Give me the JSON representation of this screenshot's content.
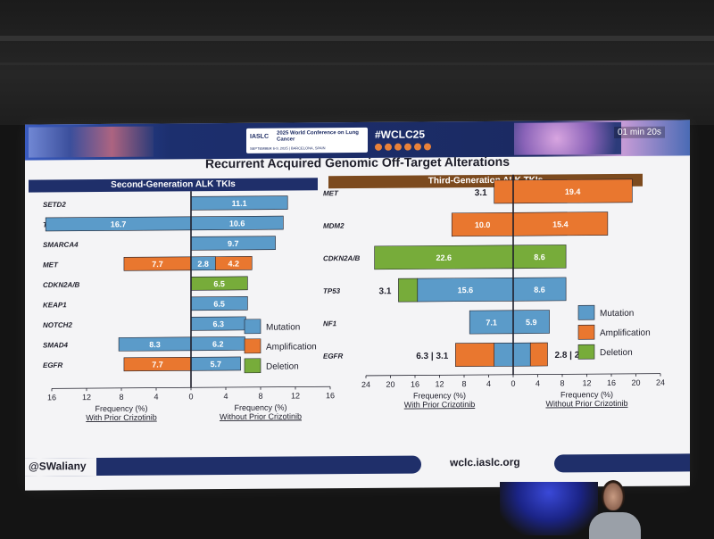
{
  "banner": {
    "conference_logo": "IASLC",
    "conference_title": "2025 World Conference on Lung Cancer",
    "conference_dates": "SEPTEMBER 6-9, 2025 | BARCELONA, SPAIN",
    "hashtag": "#WCLC25",
    "timer": "01 min 20s"
  },
  "slide": {
    "title": "Recurrent Acquired Genomic Off-Target Alterations",
    "handle": "@SWaliany",
    "url": "wclc.iaslc.org"
  },
  "colors": {
    "mutation": "#5b9bc9",
    "amplification": "#e9772f",
    "deletion": "#77ac3a",
    "left_header": "#1f2f6a",
    "right_header": "#7c4a1e"
  },
  "chart_data": [
    {
      "type": "bar",
      "orientation": "horizontal-diverging",
      "title": "Second-Generation ALK TKIs",
      "categories": [
        "SETD2",
        "TP53",
        "SMARCA4",
        "MET",
        "CDKN2A/B",
        "KEAP1",
        "NOTCH2",
        "SMAD4",
        "EGFR"
      ],
      "xticks": [
        "16",
        "12",
        "8",
        "4",
        "0",
        "4",
        "8",
        "12",
        "16"
      ],
      "xlim": [
        -16,
        16
      ],
      "xlabel_left": [
        "Frequency (%)",
        "With Prior Crizotinib"
      ],
      "xlabel_right": [
        "Frequency (%)",
        "Without Prior Crizotinib"
      ],
      "legend": [
        "Mutation",
        "Amplification",
        "Deletion"
      ],
      "segments": [
        {
          "category": "SETD2",
          "side": "right",
          "type": "Mutation",
          "value": 11.1,
          "label": "11.1"
        },
        {
          "category": "TP53",
          "side": "left",
          "type": "Mutation",
          "value": 16.7,
          "label": "16.7"
        },
        {
          "category": "TP53",
          "side": "right",
          "type": "Mutation",
          "value": 10.6,
          "label": "10.6"
        },
        {
          "category": "SMARCA4",
          "side": "right",
          "type": "Mutation",
          "value": 9.7,
          "label": "9.7"
        },
        {
          "category": "MET",
          "side": "left",
          "type": "Amplification",
          "value": 7.7,
          "label": "7.7"
        },
        {
          "category": "MET",
          "side": "right",
          "type": "Mutation",
          "value": 2.8,
          "label": "2.8"
        },
        {
          "category": "MET",
          "side": "right",
          "type": "Amplification",
          "value": 4.2,
          "label": "4.2"
        },
        {
          "category": "CDKN2A/B",
          "side": "right",
          "type": "Deletion",
          "value": 6.5,
          "label": "6.5"
        },
        {
          "category": "KEAP1",
          "side": "right",
          "type": "Mutation",
          "value": 6.5,
          "label": "6.5"
        },
        {
          "category": "NOTCH2",
          "side": "right",
          "type": "Mutation",
          "value": 6.3,
          "label": "6.3"
        },
        {
          "category": "SMAD4",
          "side": "left",
          "type": "Mutation",
          "value": 8.3,
          "label": "8.3"
        },
        {
          "category": "SMAD4",
          "side": "right",
          "type": "Mutation",
          "value": 6.2,
          "label": "6.2"
        },
        {
          "category": "EGFR",
          "side": "left",
          "type": "Amplification",
          "value": 7.7,
          "label": "7.7"
        },
        {
          "category": "EGFR",
          "side": "right",
          "type": "Mutation",
          "value": 5.7,
          "label": "5.7"
        }
      ]
    },
    {
      "type": "bar",
      "orientation": "horizontal-diverging",
      "title": "Third-Generation ALK TKIs",
      "categories": [
        "MET",
        "MDM2",
        "CDKN2A/B",
        "TP53",
        "NF1",
        "EGFR"
      ],
      "xticks": [
        "24",
        "20",
        "16",
        "12",
        "8",
        "4",
        "0",
        "4",
        "8",
        "12",
        "16",
        "20",
        "24"
      ],
      "xlim": [
        -24,
        24
      ],
      "xlabel_left": [
        "Frequency (%)",
        "With Prior Crizotinib"
      ],
      "xlabel_right": [
        "Frequency (%)",
        "Without Prior Crizotinib"
      ],
      "legend": [
        "Mutation",
        "Amplification",
        "Deletion"
      ],
      "segments": [
        {
          "category": "MET",
          "side": "left",
          "type": "Amplification",
          "value": 3.1,
          "label": ""
        },
        {
          "category": "MET",
          "side": "right",
          "type": "Amplification",
          "value": 19.4,
          "label": "19.4"
        },
        {
          "category": "MDM2",
          "side": "left",
          "type": "Amplification",
          "value": 10.0,
          "label": "10.0"
        },
        {
          "category": "MDM2",
          "side": "right",
          "type": "Amplification",
          "value": 15.4,
          "label": "15.4"
        },
        {
          "category": "CDKN2A/B",
          "side": "left",
          "type": "Deletion",
          "value": 22.6,
          "label": "22.6"
        },
        {
          "category": "CDKN2A/B",
          "side": "right",
          "type": "Deletion",
          "value": 8.6,
          "label": "8.6"
        },
        {
          "category": "TP53",
          "side": "left",
          "type": "Mutation",
          "value": 15.6,
          "label": "15.6"
        },
        {
          "category": "TP53",
          "side": "left",
          "type": "Deletion",
          "value": 3.1,
          "label": ""
        },
        {
          "category": "TP53",
          "side": "right",
          "type": "Mutation",
          "value": 8.6,
          "label": "8.6"
        },
        {
          "category": "NF1",
          "side": "left",
          "type": "Mutation",
          "value": 7.1,
          "label": "7.1"
        },
        {
          "category": "NF1",
          "side": "right",
          "type": "Mutation",
          "value": 5.9,
          "label": "5.9"
        },
        {
          "category": "EGFR",
          "side": "left",
          "type": "Mutation",
          "value": 3.1,
          "label": ""
        },
        {
          "category": "EGFR",
          "side": "left",
          "type": "Amplification",
          "value": 6.3,
          "label": ""
        },
        {
          "category": "EGFR",
          "side": "right",
          "type": "Mutation",
          "value": 2.8,
          "label": ""
        },
        {
          "category": "EGFR",
          "side": "right",
          "type": "Amplification",
          "value": 2.8,
          "label": ""
        }
      ],
      "side_annotations": [
        {
          "category": "MET",
          "side": "left",
          "text": "3.1"
        },
        {
          "category": "TP53",
          "side": "left",
          "text": "3.1"
        },
        {
          "category": "EGFR",
          "side": "left",
          "text": "6.3 | 3.1"
        },
        {
          "category": "EGFR",
          "side": "right",
          "text": "2.8 | 2.8"
        }
      ]
    }
  ]
}
